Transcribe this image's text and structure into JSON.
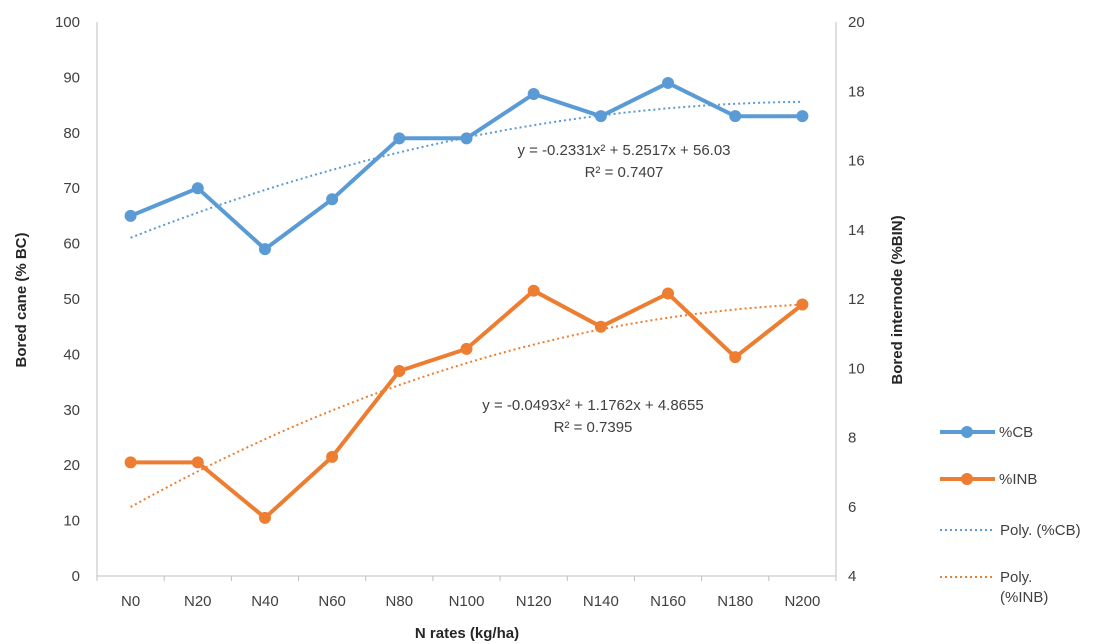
{
  "chart_data": {
    "type": "line",
    "categories": [
      "N0",
      "N20",
      "N40",
      "N60",
      "N80",
      "N100",
      "N120",
      "N140",
      "N160",
      "N180",
      "N200"
    ],
    "xlabel": "N rates (kg/ha)",
    "ylabel": "Bored cane (% BC)",
    "y2label": "Bored internode (%BIN)",
    "ylim": [
      0,
      100
    ],
    "y2lim": [
      4,
      20
    ],
    "yticks": [
      0,
      10,
      20,
      30,
      40,
      50,
      60,
      70,
      80,
      90,
      100
    ],
    "y2ticks": [
      4,
      6,
      8,
      10,
      12,
      14,
      16,
      18,
      20
    ],
    "grid": false,
    "legend_position": "right",
    "series": [
      {
        "name": "%CB",
        "axis": "left",
        "color": "#5B9BD5",
        "values": [
          65,
          70,
          59,
          68,
          79,
          79,
          87,
          83,
          89,
          83,
          83
        ]
      },
      {
        "name": "%INB",
        "axis": "left",
        "color": "#ED7D31",
        "values": [
          20.5,
          20.5,
          10.5,
          21.5,
          37,
          41,
          51.5,
          45,
          51,
          39.5,
          49
        ]
      }
    ],
    "trendlines": [
      {
        "name": "Poly. (%CB)",
        "color": "#5B9BD5",
        "coefficients": [
          -0.2331,
          5.2517,
          56.03
        ],
        "equation": "y = -0.2331x² + 5.2517x + 56.03",
        "r2": "R² = 0.7407"
      },
      {
        "name": "Poly. (%INB)",
        "color": "#ED7D31",
        "coefficients": [
          -0.0493,
          1.1762,
          4.8655
        ],
        "axis": "right",
        "equation": "y = -0.0493x² + 1.1762x + 4.8655",
        "r2": "R² = 0.7395"
      }
    ],
    "legend": [
      "%CB",
      "%INB",
      "Poly. (%CB)",
      "Poly.",
      "(%INB)"
    ]
  }
}
